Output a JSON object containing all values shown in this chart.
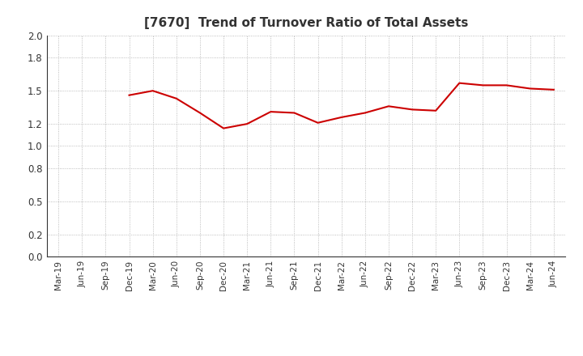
{
  "title": "[7670]  Trend of Turnover Ratio of Total Assets",
  "line_color": "#CC0000",
  "line_width": 1.5,
  "background_color": "#FFFFFF",
  "grid_color": "#AAAAAA",
  "ylim": [
    0.0,
    2.0
  ],
  "yticks": [
    0.0,
    0.2,
    0.5,
    0.8,
    1.0,
    1.2,
    1.5,
    1.8,
    2.0
  ],
  "x_labels": [
    "Mar-19",
    "Jun-19",
    "Sep-19",
    "Dec-19",
    "Mar-20",
    "Jun-20",
    "Sep-20",
    "Dec-20",
    "Mar-21",
    "Jun-21",
    "Sep-21",
    "Dec-21",
    "Mar-22",
    "Jun-22",
    "Sep-22",
    "Dec-22",
    "Mar-23",
    "Jun-23",
    "Sep-23",
    "Dec-23",
    "Mar-24",
    "Jun-24"
  ],
  "data_start_label": "Dec-19",
  "data_values": [
    1.46,
    1.5,
    1.43,
    1.3,
    1.16,
    1.2,
    1.31,
    1.3,
    1.21,
    1.26,
    1.3,
    1.36,
    1.33,
    1.32,
    1.57,
    1.55,
    1.55,
    1.52,
    1.51
  ]
}
